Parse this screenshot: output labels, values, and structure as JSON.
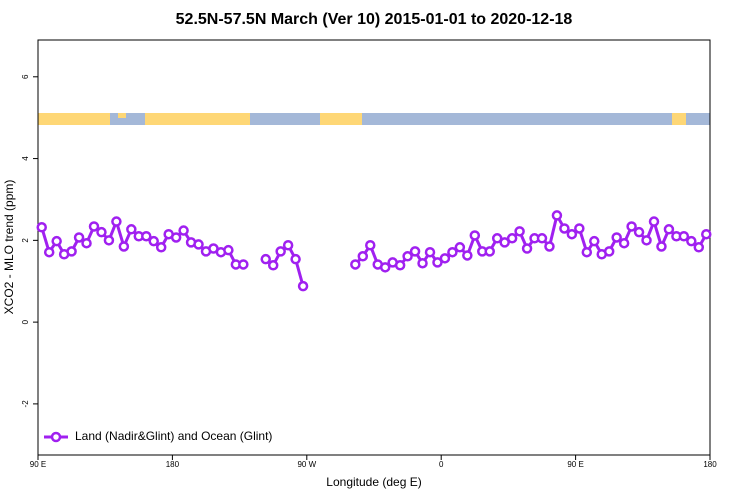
{
  "chart_data": {
    "type": "line",
    "title": "52.5N-57.5N March (Ver 10)   2015-01-01 to 2020-12-18",
    "x_label": "Longitude (deg E)",
    "y_label": "XCO2 - MLO trend (ppm)",
    "x": [
      92.5,
      97.5,
      102.5,
      107.5,
      112.5,
      117.5,
      122.5,
      127.5,
      132.5,
      137.5,
      142.5,
      147.5,
      152.5,
      157.5,
      162.5,
      167.5,
      172.5,
      177.5,
      182.5,
      187.5,
      192.5,
      197.5,
      202.5,
      207.5,
      212.5,
      217.5,
      222.5,
      227.5,
      232.5,
      237.5,
      242.5,
      247.5,
      252.5,
      257.5,
      262.5,
      267.5,
      272.5,
      277.5,
      282.5,
      287.5,
      292.5,
      297.5,
      302.5,
      307.5,
      312.5,
      317.5,
      322.5,
      327.5,
      332.5,
      337.5,
      342.5,
      347.5,
      352.5,
      357.5,
      362.5,
      367.5,
      372.5,
      377.5,
      382.5,
      387.5,
      392.5,
      397.5,
      402.5,
      407.5,
      412.5,
      417.5,
      422.5,
      427.5,
      432.5,
      437.5,
      442.5,
      447.5,
      452.5,
      457.5,
      462.5,
      467.5,
      472.5,
      477.5,
      482.5,
      487.5,
      492.5,
      497.5,
      502.5,
      507.5,
      512.5,
      517.5,
      522.5,
      527.5,
      532.5,
      537.5
    ],
    "series": [
      {
        "name": "Land (Nadir&Glint) and Ocean (Glint)",
        "color": "#a020f0",
        "values": [
          2.32,
          1.71,
          1.98,
          1.66,
          1.73,
          2.07,
          1.93,
          2.34,
          2.2,
          2.0,
          2.46,
          1.85,
          2.27,
          2.1,
          2.1,
          1.98,
          1.83,
          2.15,
          2.07,
          2.24,
          1.95,
          1.9,
          1.73,
          1.8,
          1.71,
          1.76,
          1.41,
          1.41,
          null,
          null,
          1.54,
          1.39,
          1.73,
          1.88,
          1.54,
          0.88,
          null,
          null,
          null,
          null,
          null,
          null,
          1.41,
          1.61,
          1.88,
          1.41,
          1.34,
          1.46,
          1.39,
          1.61,
          1.73,
          1.44,
          1.71,
          1.46,
          1.56,
          1.71,
          1.83,
          1.63,
          2.12,
          1.73,
          1.73,
          2.05,
          1.95,
          2.05,
          2.22,
          1.8,
          2.05,
          2.05,
          1.85,
          2.61,
          2.29,
          2.15,
          2.29,
          1.71,
          1.98,
          1.66,
          1.73,
          2.07,
          1.93,
          2.34,
          2.2,
          2.0,
          2.46,
          1.85,
          2.27,
          2.1,
          2.1,
          1.98,
          1.83,
          2.15
        ]
      }
    ],
    "xlim": [
      90,
      540
    ],
    "xticks": [
      {
        "value": 90,
        "label": "90 E"
      },
      180,
      {
        "value": 270,
        "label": "90 W"
      },
      {
        "value": 360,
        "label": "0"
      },
      {
        "value": 450,
        "label": "90 E"
      },
      {
        "value": 540,
        "label": "180"
      }
    ],
    "ylim": [
      -3.25,
      6.9
    ],
    "yticks": [
      -2,
      0,
      2,
      4,
      6
    ],
    "legend": "lower left"
  }
}
